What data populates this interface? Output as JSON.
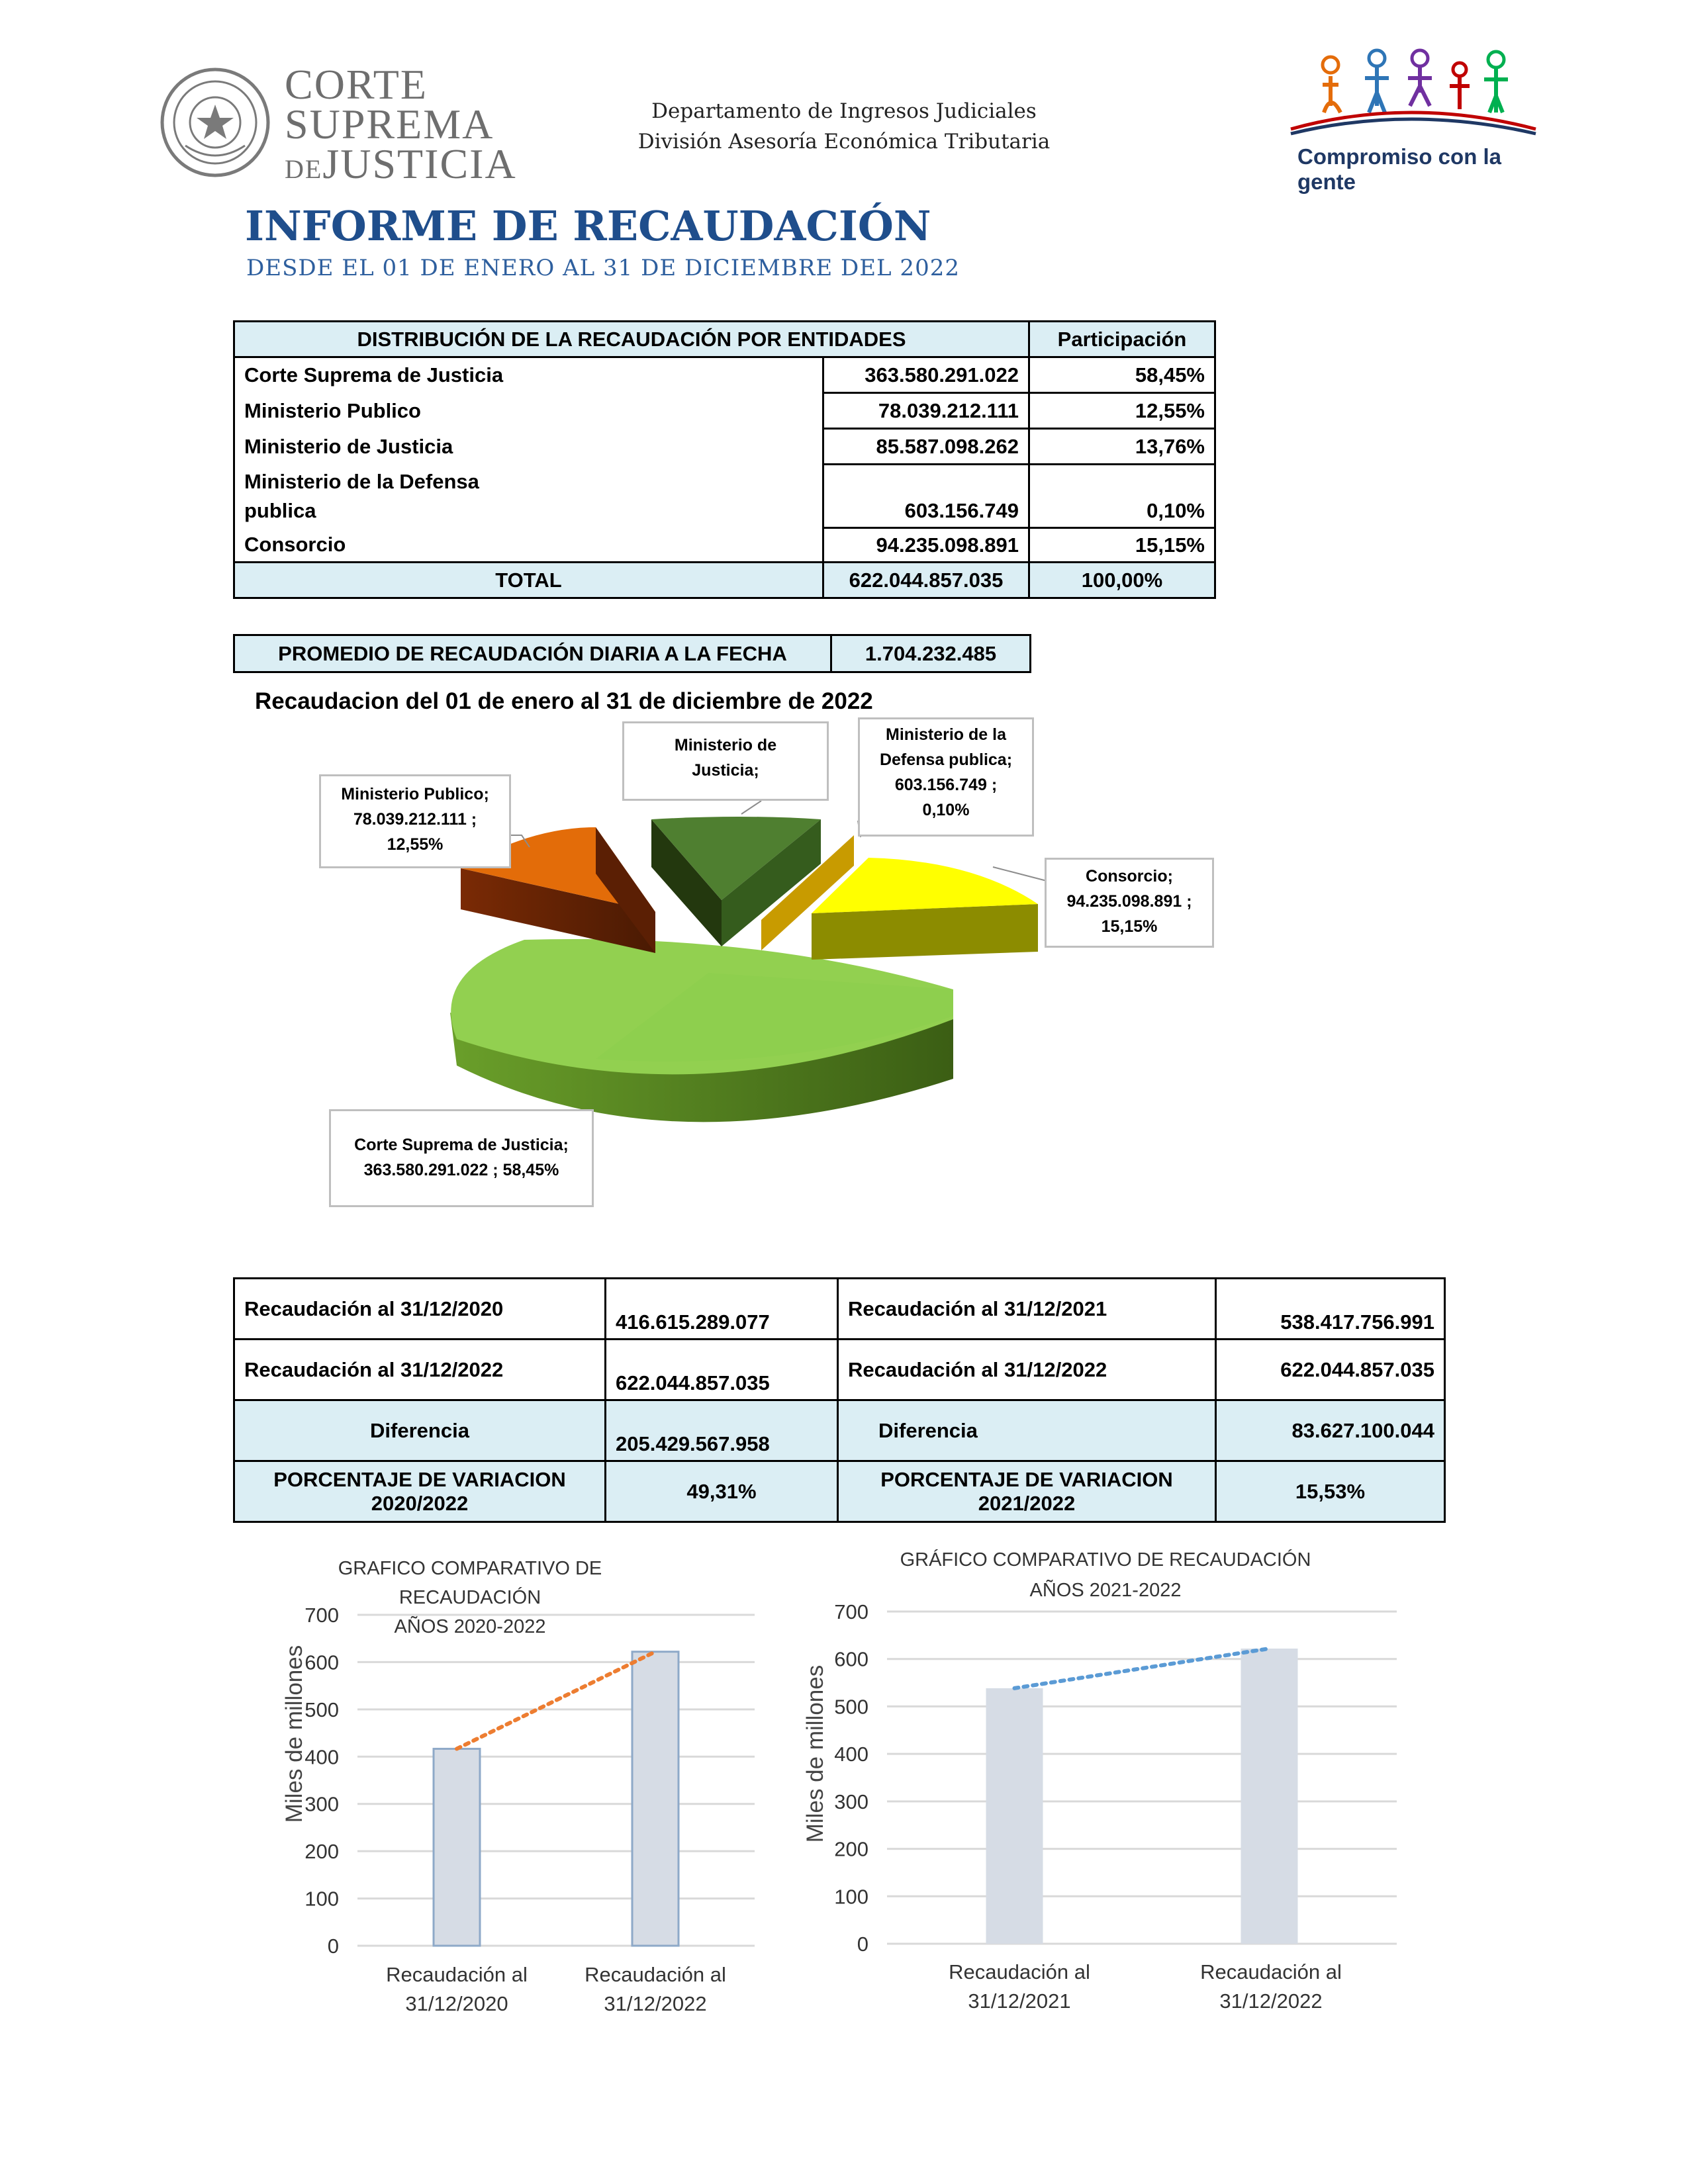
{
  "header": {
    "left_logo": {
      "seal_text": "REPUBLICA DEL PARAGUAY",
      "line1": "CORTE",
      "line2": "SUPREMA",
      "line3_prefix": "DE",
      "line3": "JUSTICIA"
    },
    "department": "Departamento de Ingresos Judiciales",
    "division": "División Asesoría Económica Tributaria",
    "right_logo_text": "Compromiso con la gente"
  },
  "report": {
    "title": "INFORME DE RECAUDACIÓN",
    "subtitle": "DESDE EL 01 DE ENERO  AL 31 DE DICIEMBRE DEL 2022"
  },
  "distribution": {
    "header": "DISTRIBUCIÓN DE LA RECAUDACIÓN POR ENTIDADES",
    "header_share": "Participación",
    "rows": [
      {
        "entity": "Corte Suprema de Justicia",
        "amount": "363.580.291.022",
        "share": "58,45%"
      },
      {
        "entity": "Ministerio Publico",
        "amount": "78.039.212.111",
        "share": "12,55%"
      },
      {
        "entity": "Ministerio de Justicia",
        "amount": "85.587.098.262",
        "share": "13,76%"
      },
      {
        "entity": "Ministerio de la Defensa publica",
        "amount": "603.156.749",
        "share": "0,10%"
      },
      {
        "entity": "Consorcio",
        "amount": "94.235.098.891",
        "share": "15,15%"
      }
    ],
    "total_label": "TOTAL",
    "total_amount": "622.044.857.035",
    "total_share": "100,00%"
  },
  "average": {
    "label": "PROMEDIO DE RECAUDACIÓN DIARIA A LA FECHA",
    "value": "1.704.232.485"
  },
  "chart_data": [
    {
      "type": "pie",
      "title": "Recaudacion del 01 de enero al 31 de diciembre de 2022",
      "categories": [
        "Corte Suprema de Justicia",
        "Ministerio Publico",
        "Ministerio de Justicia",
        "Ministerio de la Defensa publica",
        "Consorcio"
      ],
      "values": [
        363580291022,
        78039212111,
        85587098262,
        603156749,
        94235098891
      ],
      "percent": [
        58.45,
        12.55,
        13.76,
        0.1,
        15.15
      ],
      "colors": [
        "#92d050",
        "#e36c09",
        "#4f7f30",
        "#c89b00",
        "#ffff00"
      ],
      "data_labels": [
        "Corte Suprema de Justicia; 363.580.291.022 ; 58,45%",
        "Ministerio Publico; 78.039.212.111 ; 12,55%",
        "Ministerio de Justicia;",
        "Ministerio de la Defensa publica; 603.156.749 ; 0,10%",
        "Consorcio; 94.235.098.891 ; 15,15%"
      ]
    },
    {
      "type": "bar",
      "title": "GRAFICO COMPARATIVO DE RECAUDACIÓN AÑOS 2020-2022",
      "categories": [
        "Recaudación al 31/12/2020",
        "Recaudación al 31/12/2022"
      ],
      "values": [
        416.6,
        622.0
      ],
      "ylabel": "Miles de millones",
      "ylim": [
        0,
        700
      ],
      "yticks": [
        0,
        100,
        200,
        300,
        400,
        500,
        600,
        700
      ],
      "trendline": true,
      "grid": true,
      "bar_color": "#d6dce5",
      "trend_color": "#ed7d31"
    },
    {
      "type": "bar",
      "title": "GRÁFICO COMPARATIVO DE RECAUDACIÓN AÑOS 2021-2022",
      "categories": [
        "Recaudación al 31/12/2021",
        "Recaudación al 31/12/2022"
      ],
      "values": [
        538.4,
        622.0
      ],
      "ylabel": "Miles de millones",
      "ylim": [
        0,
        700
      ],
      "yticks": [
        0,
        100,
        200,
        300,
        400,
        500,
        600,
        700
      ],
      "trendline": true,
      "grid": true,
      "bar_color": "#d6dce5",
      "trend_color": "#5b9bd5"
    }
  ],
  "comparison": {
    "left": {
      "row1_label": "Recaudación al 31/12/2020",
      "row1_value": "416.615.289.077",
      "row2_label": "Recaudación al 31/12/2022",
      "row2_value": "622.044.857.035",
      "diff_label": "Diferencia",
      "diff_value": "205.429.567.958",
      "var_label_1": "PORCENTAJE DE VARIACION",
      "var_label_2": "2020/2022",
      "var_value": "49,31%"
    },
    "right": {
      "row1_label": "Recaudación al 31/12/2021",
      "row1_value": "538.417.756.991",
      "row2_label": "Recaudación al 31/12/2022",
      "row2_value": "622.044.857.035",
      "diff_label": "Diferencia",
      "diff_value": "83.627.100.044",
      "var_label_1": "PORCENTAJE DE VARIACION",
      "var_label_2": "2021/2022",
      "var_value": "15,53%"
    }
  },
  "bar_chart_titles": {
    "left": [
      "GRAFICO COMPARATIVO DE",
      "RECAUDACIÓN",
      "AÑOS 2020-2022"
    ],
    "right": [
      "GRÁFICO COMPARATIVO DE RECAUDACIÓN",
      "AÑOS 2021-2022"
    ]
  },
  "bar_chart_xlabels": {
    "left": [
      [
        "Recaudación al",
        "31/12/2020"
      ],
      [
        "Recaudación al",
        "31/12/2022"
      ]
    ],
    "right": [
      [
        "Recaudación al",
        "31/12/2021"
      ],
      [
        "Recaudación al",
        "31/12/2022"
      ]
    ]
  },
  "pie_labels": {
    "csj": [
      "Corte Suprema de Justicia;",
      "363.580.291.022 ; 58,45%"
    ],
    "mp": [
      "Ministerio Publico;",
      "78.039.212.111 ;",
      "12,55%"
    ],
    "mj": [
      "Ministerio de",
      "Justicia;"
    ],
    "mdp": [
      "Ministerio de la",
      "Defensa publica;",
      "603.156.749 ;",
      "0,10%"
    ],
    "cons": [
      "Consorcio;",
      "94.235.098.891 ;",
      "15,15%"
    ]
  }
}
